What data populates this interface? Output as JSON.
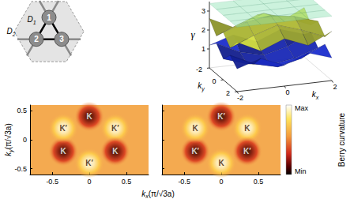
{
  "lattice": {
    "sites": [
      "1",
      "2",
      "3"
    ],
    "bond_labels": [
      {
        "text": "D",
        "sub": "1"
      },
      {
        "text": "D",
        "sub": "2"
      }
    ]
  },
  "chart_data": [
    {
      "type": "surface",
      "zlabel": "γ",
      "xlabel": {
        "text": "k",
        "sub": "x"
      },
      "ylabel": {
        "text": "k",
        "sub": "y"
      },
      "x": [
        -2,
        -1,
        0,
        1,
        2
      ],
      "y": [
        -2,
        -1,
        0,
        1,
        2
      ],
      "xlim": [
        -2,
        2
      ],
      "ylim": [
        -2,
        2
      ],
      "zlim": [
        0,
        3.5
      ],
      "xticks": [
        -2,
        0,
        2
      ],
      "yticks": [
        -2,
        0,
        2
      ],
      "zticks": [
        1,
        2,
        3
      ],
      "series": [
        {
          "color": "#1a2bc4",
          "values": [
            [
              1.2,
              1.6,
              1.1,
              1.6,
              1.2
            ],
            [
              1.6,
              1.0,
              0.7,
              1.0,
              1.6
            ],
            [
              1.1,
              0.7,
              0.5,
              0.7,
              1.1
            ],
            [
              1.6,
              1.0,
              0.7,
              1.0,
              1.6
            ],
            [
              1.2,
              1.6,
              1.1,
              1.6,
              1.2
            ]
          ]
        },
        {
          "color": "#c9d43c",
          "values": [
            [
              2.6,
              2.0,
              2.5,
              2.0,
              2.6
            ],
            [
              2.0,
              2.5,
              2.9,
              2.5,
              2.0
            ],
            [
              2.5,
              2.9,
              3.1,
              2.9,
              2.5
            ],
            [
              2.0,
              2.5,
              2.9,
              2.5,
              2.0
            ],
            [
              2.6,
              2.0,
              2.5,
              2.0,
              2.6
            ]
          ]
        },
        {
          "type": "plane",
          "color": "#8fe3b4",
          "values": [
            [
              3.4,
              3.4,
              3.4,
              3.4,
              3.4
            ],
            [
              3.4,
              3.4,
              3.4,
              3.4,
              3.4
            ],
            [
              3.4,
              3.4,
              3.4,
              3.4,
              3.4
            ],
            [
              3.4,
              3.4,
              3.4,
              3.4,
              3.4
            ],
            [
              3.4,
              3.4,
              3.4,
              3.4,
              3.4
            ]
          ]
        }
      ]
    },
    {
      "type": "heatmap",
      "ylabel": {
        "text": "k",
        "sub": "y",
        "unit": "(π/√3a)"
      },
      "xlim": [
        -0.8,
        0.8
      ],
      "ylim": [
        -0.6,
        0.6
      ],
      "xticks": [
        -0.5,
        0,
        0.5
      ],
      "yticks": [
        -0.5,
        0,
        0.5
      ],
      "x": [
        0,
        0.35,
        0.35,
        0,
        -0.35,
        -0.35
      ],
      "y": [
        0.4,
        0.2,
        -0.2,
        -0.4,
        -0.2,
        0.2
      ],
      "labels": [
        "K",
        "K′",
        "K",
        "K′",
        "K",
        "K′"
      ],
      "levels": [
        "Min",
        "Max",
        "Min",
        "Max",
        "Min",
        "Max"
      ]
    },
    {
      "type": "heatmap",
      "tick_labels": "x",
      "xlim": [
        -0.8,
        0.8
      ],
      "ylim": [
        -0.6,
        0.6
      ],
      "xticks": [
        -0.5,
        0,
        0.5
      ],
      "yticks": [
        -0.5,
        0,
        0.5
      ],
      "x": [
        0,
        0.35,
        0.35,
        0,
        -0.35,
        -0.35
      ],
      "y": [
        0.4,
        0.2,
        -0.2,
        -0.4,
        -0.2,
        0.2
      ],
      "labels": [
        "K′",
        "K",
        "K′",
        "K",
        "K′",
        "K"
      ],
      "levels": [
        "Min",
        "Max",
        "Min",
        "Max",
        "Min",
        "Max"
      ]
    }
  ],
  "maps_xlabel": {
    "text": "k",
    "sub": "x",
    "unit": "(π/√3a)"
  },
  "maps_colorbar": {
    "label": "Berry curvature",
    "ticks": [
      "Min",
      "Max"
    ]
  }
}
